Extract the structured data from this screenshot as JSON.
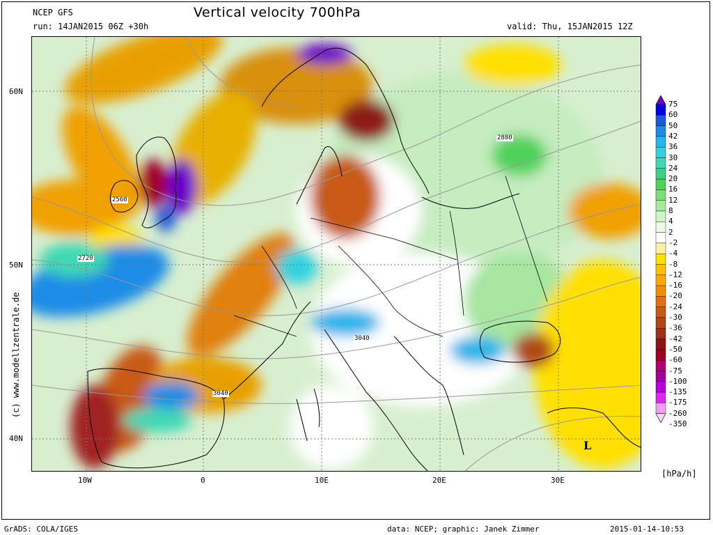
{
  "header": {
    "model": "NCEP GFS",
    "run": "run: 14JAN2015 06Z +30h",
    "title": "Vertical velocity 700hPa",
    "valid": "valid: Thu, 15JAN2015 12Z"
  },
  "axes": {
    "lat_labels": [
      "60N",
      "50N",
      "40N"
    ],
    "lon_labels": [
      "10W",
      "0",
      "10E",
      "20E",
      "30E"
    ]
  },
  "contour_labels": [
    "2880",
    "2560",
    "2720",
    "3040",
    "3040"
  ],
  "low_marker": "L",
  "credit": "(c) www.modellzentrale.de",
  "legend": {
    "units": "[hPa/h]",
    "levels": [
      "75",
      "60",
      "50",
      "42",
      "36",
      "30",
      "24",
      "20",
      "16",
      "12",
      "8",
      "4",
      "2",
      "-2",
      "-4",
      "-8",
      "-12",
      "-16",
      "-20",
      "-24",
      "-30",
      "-36",
      "-42",
      "-50",
      "-60",
      "-75",
      "-100",
      "-135",
      "-175",
      "-260",
      "-350"
    ],
    "colors": [
      "#6a00c8",
      "#0000e0",
      "#1a5ad8",
      "#1e8ce6",
      "#28b4ea",
      "#32d2e0",
      "#40d8b4",
      "#3cd080",
      "#50d25a",
      "#7ede78",
      "#a6eaa0",
      "#cdf5c8",
      "#eafae6",
      "#ffffff",
      "#fff0a0",
      "#ffe000",
      "#ffc000",
      "#f8a800",
      "#f09000",
      "#e07010",
      "#c85a14",
      "#b04814",
      "#9a3214",
      "#8c1414",
      "#a00028",
      "#b4006e",
      "#a000a0",
      "#b400dc",
      "#dc28f0",
      "#f0a0f0",
      "#f8d8f8"
    ]
  },
  "footer": {
    "left": "GrADS: COLA/IGES",
    "center": "data: NCEP; graphic: Janek Zimmer",
    "right": "2015-01-14-10:53"
  }
}
